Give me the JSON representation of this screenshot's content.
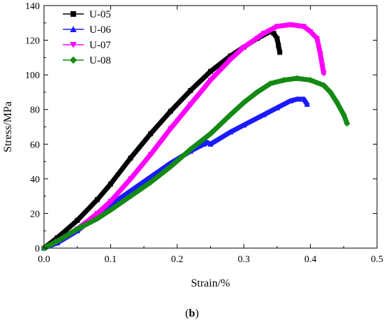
{
  "caption": {
    "open": "(",
    "label": "b",
    "close": ")"
  },
  "chart_data": {
    "type": "scatter",
    "title": "",
    "xlabel": "Strain/%",
    "ylabel": "Stress/MPa",
    "xlim": [
      0.0,
      0.5
    ],
    "ylim": [
      0,
      140
    ],
    "xticks": [
      "0.0",
      "0.1",
      "0.2",
      "0.3",
      "0.4",
      "0.5"
    ],
    "yticks": [
      "0",
      "20",
      "40",
      "60",
      "80",
      "100",
      "120",
      "140"
    ],
    "grid": false,
    "legend_position": "top-left",
    "series": [
      {
        "name": "U-05",
        "color": "#000000",
        "marker": "square",
        "x": [
          0.0,
          0.02,
          0.05,
          0.08,
          0.1,
          0.13,
          0.16,
          0.19,
          0.22,
          0.25,
          0.28,
          0.3,
          0.32,
          0.34,
          0.345,
          0.35,
          0.352,
          0.354
        ],
        "y": [
          0,
          6,
          16,
          28,
          37,
          52,
          66,
          79,
          91,
          102,
          111,
          116,
          121,
          125,
          124,
          121,
          117,
          113
        ]
      },
      {
        "name": "U-06",
        "color": "#1a1aff",
        "marker": "triangle-up",
        "x": [
          0.0,
          0.02,
          0.05,
          0.08,
          0.1,
          0.13,
          0.16,
          0.19,
          0.22,
          0.24,
          0.245,
          0.25,
          0.28,
          0.3,
          0.33,
          0.35,
          0.37,
          0.38,
          0.39,
          0.395
        ],
        "y": [
          0,
          3,
          10,
          19,
          25,
          33,
          41,
          49,
          56,
          60,
          61,
          60,
          67,
          71,
          77,
          81,
          85,
          86,
          86,
          83
        ]
      },
      {
        "name": "U-07",
        "color": "#ff00ff",
        "marker": "triangle-down",
        "x": [
          0.0,
          0.02,
          0.05,
          0.08,
          0.1,
          0.13,
          0.16,
          0.19,
          0.22,
          0.25,
          0.28,
          0.3,
          0.33,
          0.35,
          0.37,
          0.39,
          0.4,
          0.41,
          0.415,
          0.418,
          0.42
        ],
        "y": [
          0,
          4,
          11,
          20,
          27,
          40,
          54,
          69,
          83,
          97,
          109,
          116,
          124,
          128,
          129,
          128,
          125,
          121,
          112,
          105,
          101
        ]
      },
      {
        "name": "U-08",
        "color": "#138a13",
        "marker": "diamond",
        "x": [
          0.0,
          0.02,
          0.05,
          0.08,
          0.1,
          0.13,
          0.16,
          0.19,
          0.22,
          0.25,
          0.28,
          0.3,
          0.32,
          0.34,
          0.36,
          0.38,
          0.4,
          0.42,
          0.43,
          0.44,
          0.45,
          0.455
        ],
        "y": [
          0,
          4,
          11,
          17,
          22,
          30,
          38,
          47,
          57,
          66,
          77,
          84,
          90,
          95,
          97,
          98,
          97,
          94,
          90,
          84,
          77,
          72
        ]
      }
    ]
  }
}
